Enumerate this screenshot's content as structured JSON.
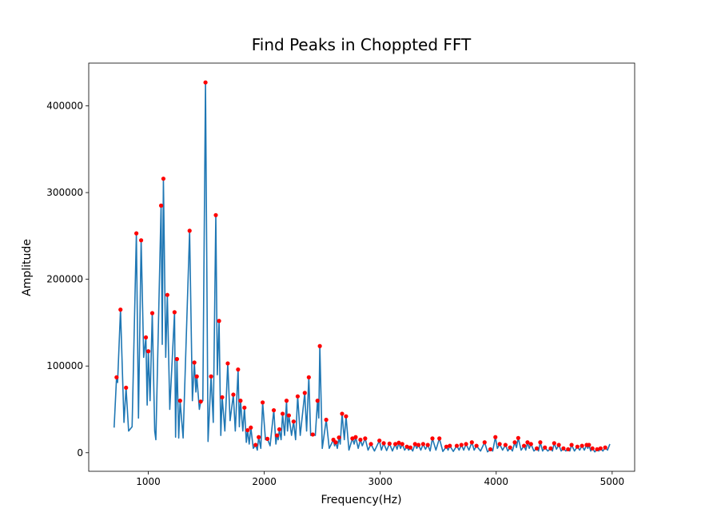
{
  "chart_data": {
    "type": "line",
    "title": "Find Peaks in Choppted FFT",
    "x_label": "Frequency(Hz)",
    "y_label": "Amplitude",
    "xlim": [
      486,
      5194
    ],
    "ylim": [
      -21400,
      449300
    ],
    "xticks": [
      1000,
      2000,
      3000,
      4000,
      5000
    ],
    "yticks": [
      0,
      100000,
      200000,
      300000,
      400000
    ],
    "grid": false,
    "series": [
      {
        "style": "line",
        "color": "#1f77b4",
        "x": [
          705,
          726,
          735,
          760,
          790,
          808,
          830,
          860,
          897,
          915,
          938,
          960,
          979,
          990,
          1000,
          1015,
          1034,
          1055,
          1065,
          1110,
          1120,
          1130,
          1150,
          1164,
          1185,
          1226,
          1235,
          1247,
          1262,
          1274,
          1300,
          1356,
          1380,
          1397,
          1410,
          1418,
          1440,
          1452,
          1470,
          1493,
          1515,
          1541,
          1560,
          1582,
          1595,
          1610,
          1625,
          1637,
          1660,
          1685,
          1705,
          1733,
          1750,
          1774,
          1785,
          1795,
          1815,
          1829,
          1845,
          1856,
          1870,
          1884,
          1905,
          1925,
          1940,
          1952,
          1970,
          1986,
          2010,
          2027,
          2050,
          2082,
          2100,
          2110,
          2120,
          2130,
          2145,
          2158,
          2175,
          2192,
          2200,
          2212,
          2235,
          2253,
          2270,
          2288,
          2310,
          2349,
          2365,
          2384,
          2400,
          2418,
          2440,
          2459,
          2470,
          2479,
          2500,
          2534,
          2560,
          2596,
          2606,
          2616,
          2630,
          2644,
          2655,
          2671,
          2690,
          2705,
          2730,
          2760,
          2775,
          2788,
          2810,
          2829,
          2845,
          2870,
          2895,
          2920,
          2950,
          2993,
          3010,
          3030,
          3055,
          3080,
          3105,
          3130,
          3145,
          3160,
          3175,
          3190,
          3210,
          3230,
          3245,
          3260,
          3280,
          3300,
          3315,
          3330,
          3350,
          3370,
          3390,
          3410,
          3430,
          3450,
          3480,
          3510,
          3540,
          3570,
          3585,
          3600,
          3630,
          3660,
          3680,
          3700,
          3720,
          3740,
          3765,
          3790,
          3810,
          3830,
          3865,
          3900,
          3925,
          3950,
          3970,
          3993,
          4010,
          4030,
          4055,
          4080,
          4100,
          4120,
          4140,
          4160,
          4175,
          4190,
          4215,
          4240,
          4255,
          4270,
          4285,
          4300,
          4325,
          4350,
          4365,
          4380,
          4400,
          4420,
          4445,
          4470,
          4485,
          4500,
          4520,
          4540,
          4560,
          4580,
          4600,
          4620,
          4635,
          4650,
          4675,
          4700,
          4720,
          4740,
          4760,
          4780,
          4790,
          4800,
          4815,
          4830,
          4850,
          4870,
          4885,
          4900,
          4920,
          4940,
          4960,
          4980
        ],
        "values": [
          29000,
          87000,
          81000,
          165000,
          35000,
          75000,
          25000,
          30000,
          253000,
          40000,
          245000,
          110000,
          133000,
          55000,
          117000,
          60000,
          161000,
          25000,
          15000,
          285000,
          125000,
          316000,
          110000,
          182000,
          50000,
          162000,
          18000,
          108000,
          17000,
          60000,
          17000,
          256000,
          60000,
          104000,
          70000,
          88000,
          50000,
          59000,
          60000,
          427000,
          13000,
          88000,
          35000,
          274000,
          90000,
          152000,
          20000,
          64000,
          25000,
          103000,
          37000,
          67000,
          25000,
          96000,
          30000,
          60000,
          25000,
          52000,
          12000,
          26000,
          10000,
          29000,
          5000,
          9000,
          3000,
          18000,
          5000,
          58000,
          15000,
          16000,
          8000,
          49000,
          10000,
          20000,
          15000,
          27000,
          15000,
          45000,
          20000,
          60000,
          25000,
          43000,
          20000,
          36000,
          15000,
          65000,
          20000,
          69000,
          25000,
          87000,
          20000,
          21000,
          20000,
          60000,
          40000,
          123000,
          5000,
          38000,
          5000,
          15000,
          8000,
          12000,
          5000,
          17500,
          10000,
          45000,
          15000,
          42000,
          3000,
          16500,
          10000,
          18000,
          5000,
          15000,
          8000,
          16500,
          3000,
          10000,
          2000,
          14000,
          3000,
          11000,
          2500,
          10500,
          2000,
          10000,
          4000,
          11500,
          5000,
          10000,
          3000,
          7000,
          3000,
          6000,
          2000,
          10000,
          5000,
          9000,
          3000,
          10000,
          4000,
          9000,
          2000,
          16500,
          3000,
          16500,
          1500,
          7000,
          3000,
          8000,
          1500,
          8000,
          3000,
          9000,
          3000,
          10000,
          3000,
          12000,
          3000,
          8000,
          2000,
          12000,
          1000,
          4000,
          2000,
          18000,
          5000,
          10000,
          3000,
          9000,
          2000,
          6000,
          2000,
          12000,
          6000,
          17000,
          3000,
          8000,
          3000,
          12000,
          5000,
          10000,
          2000,
          5000,
          2000,
          12000,
          2000,
          6000,
          2000,
          5000,
          2000,
          11000,
          4000,
          9000,
          2000,
          5000,
          2000,
          4000,
          2000,
          9000,
          2000,
          7000,
          3000,
          8000,
          3000,
          9000,
          5000,
          9000,
          2000,
          5000,
          1000,
          4000,
          2000,
          5000,
          2000,
          6000,
          3000,
          10000
        ]
      },
      {
        "style": "points",
        "color": "#ff0000",
        "x": [
          726,
          760,
          808,
          897,
          938,
          979,
          1000,
          1034,
          1110,
          1130,
          1164,
          1226,
          1247,
          1274,
          1356,
          1397,
          1418,
          1452,
          1493,
          1541,
          1582,
          1610,
          1637,
          1685,
          1733,
          1774,
          1795,
          1829,
          1856,
          1884,
          1925,
          1952,
          1986,
          2027,
          2082,
          2110,
          2130,
          2158,
          2192,
          2212,
          2253,
          2288,
          2349,
          2384,
          2418,
          2459,
          2479,
          2534,
          2596,
          2616,
          2644,
          2671,
          2705,
          2760,
          2788,
          2829,
          2870,
          2920,
          2993,
          3030,
          3080,
          3130,
          3160,
          3190,
          3230,
          3260,
          3300,
          3330,
          3370,
          3410,
          3450,
          3510,
          3570,
          3600,
          3660,
          3700,
          3740,
          3790,
          3830,
          3900,
          3950,
          3993,
          4030,
          4080,
          4120,
          4160,
          4190,
          4240,
          4270,
          4300,
          4350,
          4380,
          4420,
          4470,
          4500,
          4540,
          4580,
          4620,
          4650,
          4700,
          4740,
          4780,
          4800,
          4830,
          4870,
          4900,
          4940
        ],
        "values": [
          87000,
          165000,
          75000,
          253000,
          245000,
          133000,
          117000,
          161000,
          285000,
          316000,
          182000,
          162000,
          108000,
          60000,
          256000,
          104000,
          88000,
          59000,
          427000,
          88000,
          274000,
          152000,
          64000,
          103000,
          67000,
          96000,
          60000,
          52000,
          26000,
          29000,
          9000,
          18000,
          58000,
          16000,
          49000,
          20000,
          27000,
          45000,
          60000,
          43000,
          36000,
          65000,
          69000,
          87000,
          21000,
          60000,
          123000,
          38000,
          15000,
          12000,
          17500,
          45000,
          42000,
          16500,
          18000,
          15000,
          16500,
          10000,
          14000,
          11000,
          10500,
          10000,
          11500,
          10000,
          7000,
          6000,
          10000,
          9000,
          10000,
          9000,
          16500,
          16500,
          7000,
          8000,
          8000,
          9000,
          10000,
          12000,
          8000,
          12000,
          4000,
          18000,
          10000,
          9000,
          6000,
          12000,
          17000,
          8000,
          12000,
          10000,
          5000,
          12000,
          6000,
          5000,
          11000,
          9000,
          5000,
          4000,
          9000,
          7000,
          8000,
          9000,
          9000,
          5000,
          4000,
          5000,
          6000
        ]
      }
    ]
  }
}
